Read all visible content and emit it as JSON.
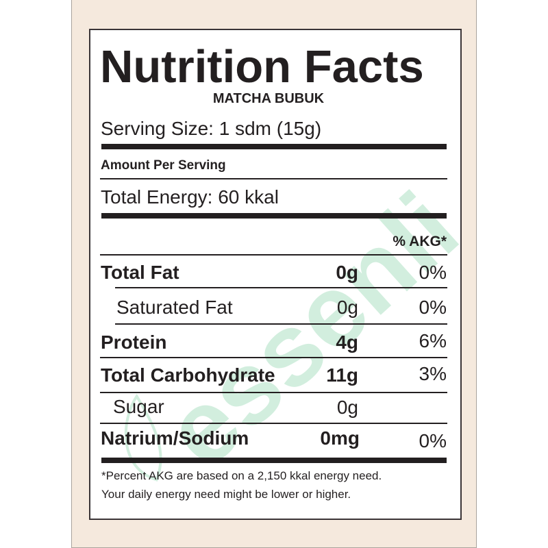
{
  "label": {
    "title": "Nutrition Facts",
    "product": "MATCHA BUBUK",
    "serving_size": "Serving Size: 1 sdm (15g)",
    "amount_per_serving": "Amount Per Serving",
    "total_energy": "Total Energy: 60 kkal",
    "akg_header": "% AKG*",
    "rows": [
      {
        "name": "Total Fat",
        "amount": "0g",
        "percent": "0%"
      },
      {
        "name": "Saturated Fat",
        "amount": "0g",
        "percent": "0%"
      },
      {
        "name": "Protein",
        "amount": "4g",
        "percent": "6%"
      },
      {
        "name": "Total Carbohydrate",
        "amount": "11g",
        "percent": "3%"
      },
      {
        "name": "Sugar",
        "amount": "0g",
        "percent": ""
      },
      {
        "name": "Natrium/Sodium",
        "amount": "0mg",
        "percent": "0%"
      }
    ],
    "footnote_line1": "*Percent AKG are based on a 2,150 kkal energy need.",
    "footnote_line2": "Your daily energy need might be lower or higher."
  },
  "watermark": {
    "text": "essenli",
    "color": "#7fcfa3"
  },
  "colors": {
    "background": "#f5e9dd",
    "ink": "#231f20"
  }
}
